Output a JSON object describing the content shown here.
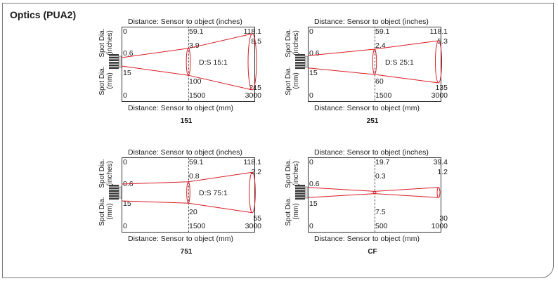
{
  "title": "Optics (PUA2)",
  "top_axis_label": "Distance: Sensor to object (inches)",
  "bottom_axis_label": "Distance: Sensor to object (mm)",
  "left_upper_label": "Spot Dia.\n(inches)",
  "left_lower_label": "Spot Dia.\n(mm)",
  "colors": {
    "beam": "#d81c24",
    "frame": "#7a7a7a",
    "grid": "#333333"
  },
  "panels": [
    {
      "caption": "151",
      "ratio": "D:S 15:1",
      "inch_dist": [
        "0",
        "59.1",
        "118.1"
      ],
      "inch_spot": [
        "0.6",
        "3.9",
        "8.5"
      ],
      "mm_dist": [
        "0",
        "1500",
        "3000"
      ],
      "mm_spot": [
        "15",
        "100",
        "215"
      ],
      "spot_fraction": [
        0.15,
        0.48,
        1.0
      ]
    },
    {
      "caption": "251",
      "ratio": "D:S 25:1",
      "inch_dist": [
        "0",
        "59.1",
        "118.1"
      ],
      "inch_spot": [
        "0.6",
        "2.4",
        "5.3"
      ],
      "mm_dist": [
        "0",
        "1500",
        "3000"
      ],
      "mm_spot": [
        "15",
        "60",
        "135"
      ],
      "spot_fraction": [
        0.22,
        0.45,
        0.75
      ]
    },
    {
      "caption": "751",
      "ratio": "D:S 75:1",
      "inch_dist": [
        "0",
        "59.1",
        "118.1"
      ],
      "inch_spot": [
        "0.6",
        "0.8",
        "2.2"
      ],
      "mm_dist": [
        "0",
        "1500",
        "3000"
      ],
      "mm_spot": [
        "15",
        "20",
        "55"
      ],
      "spot_fraction": [
        0.3,
        0.38,
        0.72
      ]
    },
    {
      "caption": "CF",
      "ratio": "",
      "inch_dist": [
        "0",
        "19.7",
        "39.4"
      ],
      "inch_spot": [
        "0.6",
        "0.3",
        "1.2"
      ],
      "mm_dist": [
        "0",
        "500",
        "1000"
      ],
      "mm_spot": [
        "15",
        "7.5",
        "30"
      ],
      "spot_fraction": [
        0.18,
        0.04,
        0.18
      ]
    }
  ]
}
